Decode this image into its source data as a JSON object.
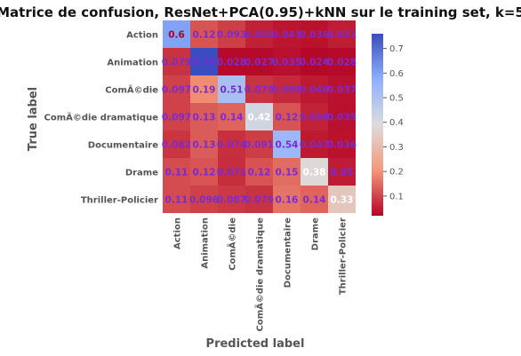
{
  "chart_data": {
    "type": "heatmap",
    "title": "Matrice de confusion, ResNet+PCA(0.95)+kNN sur le training set, k=5",
    "xlabel": "Predicted label",
    "ylabel": "True label",
    "labels": [
      "Action",
      "Animation",
      "ComÃ©die",
      "ComÃ©die dramatique",
      "Documentaire",
      "Drame",
      "Thriller-Policier"
    ],
    "values": [
      [
        0.6,
        0.12,
        0.093,
        0.056,
        0.041,
        0.036,
        0.051
      ],
      [
        0.079,
        0.76,
        0.028,
        0.027,
        0.035,
        0.024,
        0.028
      ],
      [
        0.097,
        0.19,
        0.51,
        0.079,
        0.066,
        0.046,
        0.037
      ],
      [
        0.097,
        0.13,
        0.14,
        0.42,
        0.12,
        0.058,
        0.035
      ],
      [
        0.082,
        0.13,
        0.074,
        0.091,
        0.54,
        0.047,
        0.036
      ],
      [
        0.11,
        0.12,
        0.071,
        0.12,
        0.15,
        0.38,
        0.05
      ],
      [
        0.11,
        0.096,
        0.087,
        0.079,
        0.16,
        0.14,
        0.33
      ]
    ],
    "cell_labels": [
      [
        "0.6",
        "0.12",
        "0.093",
        "0.056",
        "0.041",
        "0.036",
        "0.051"
      ],
      [
        "0.079",
        "0.76",
        "0.028",
        "0.027",
        "0.035",
        "0.024",
        "0.028"
      ],
      [
        "0.097",
        "0.19",
        "0.51",
        "0.079",
        "0.066",
        "0.046",
        "0.037"
      ],
      [
        "0.097",
        "0.13",
        "0.14",
        "0.42",
        "0.12",
        "0.058",
        "0.035"
      ],
      [
        "0.082",
        "0.13",
        "0.074",
        "0.091",
        "0.54",
        "0.047",
        "0.036"
      ],
      [
        "0.11",
        "0.12",
        "0.071",
        "0.12",
        "0.15",
        "0.38",
        "0.05"
      ],
      [
        "0.11",
        "0.096",
        "0.087",
        "0.079",
        "0.16",
        "0.14",
        "0.33"
      ]
    ],
    "colorscale": "coolwarm_r",
    "vmin": 0.02,
    "vmax": 0.76,
    "colorbar_ticks": [
      "0.1",
      "0.2",
      "0.3",
      "0.4",
      "0.5",
      "0.6",
      "0.7"
    ],
    "colors": {
      "low": "#b40426",
      "mid": "#dddcdc",
      "high": "#3b4cc0",
      "annotation": "#7a2bd1"
    },
    "grid": false,
    "legend": "colorbar-right"
  }
}
